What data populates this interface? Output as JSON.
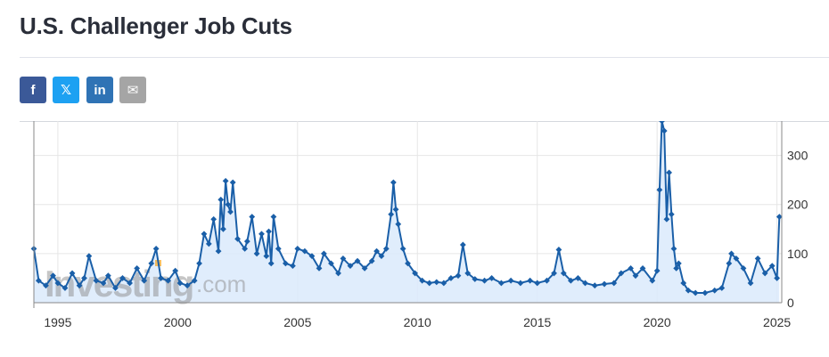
{
  "page": {
    "title": "U.S. Challenger Job Cuts"
  },
  "share": [
    {
      "id": "facebook",
      "icon": "facebook-icon",
      "glyph": "f",
      "color": "#3b5998"
    },
    {
      "id": "twitter",
      "icon": "x-twitter-icon",
      "glyph": "𝕏",
      "color": "#1da1f2"
    },
    {
      "id": "linkedin",
      "icon": "linkedin-icon",
      "glyph": "in",
      "color": "#2f73b5"
    },
    {
      "id": "email",
      "icon": "envelope-icon",
      "glyph": "✉",
      "color": "#a5a5a5"
    }
  ],
  "watermark": {
    "brand": "Investing",
    "suffix": ".com"
  },
  "colors": {
    "line": "#1a5fa8",
    "area": "#dbeafb",
    "grid": "#e6e6e6",
    "axis": "#333333",
    "tick_label": "#333333"
  },
  "chart_data": {
    "type": "area",
    "title": "",
    "xlabel": "",
    "ylabel": "",
    "x_range": [
      1994.0,
      2025.2
    ],
    "ylim": [
      0,
      370
    ],
    "x_ticks": [
      1995,
      2000,
      2005,
      2010,
      2015,
      2020,
      2025
    ],
    "y_ticks": [
      0,
      100,
      200,
      300
    ],
    "y_axis_side": "right",
    "grid": true,
    "marker": "diamond",
    "unit": "K",
    "series": [
      {
        "points": [
          [
            1994.0,
            110
          ],
          [
            1994.2,
            45
          ],
          [
            1994.5,
            35
          ],
          [
            1994.8,
            55
          ],
          [
            1995.0,
            40
          ],
          [
            1995.3,
            30
          ],
          [
            1995.6,
            60
          ],
          [
            1995.9,
            35
          ],
          [
            1996.1,
            50
          ],
          [
            1996.3,
            95
          ],
          [
            1996.6,
            45
          ],
          [
            1996.9,
            40
          ],
          [
            1997.1,
            55
          ],
          [
            1997.4,
            30
          ],
          [
            1997.7,
            50
          ],
          [
            1998.0,
            40
          ],
          [
            1998.3,
            70
          ],
          [
            1998.6,
            45
          ],
          [
            1998.9,
            80
          ],
          [
            1999.1,
            110
          ],
          [
            1999.3,
            50
          ],
          [
            1999.6,
            45
          ],
          [
            1999.9,
            65
          ],
          [
            2000.1,
            40
          ],
          [
            2000.4,
            35
          ],
          [
            2000.7,
            45
          ],
          [
            2000.9,
            80
          ],
          [
            2001.1,
            140
          ],
          [
            2001.3,
            120
          ],
          [
            2001.5,
            170
          ],
          [
            2001.7,
            105
          ],
          [
            2001.8,
            210
          ],
          [
            2001.9,
            150
          ],
          [
            2002.0,
            248
          ],
          [
            2002.1,
            200
          ],
          [
            2002.2,
            185
          ],
          [
            2002.3,
            245
          ],
          [
            2002.5,
            130
          ],
          [
            2002.8,
            110
          ],
          [
            2002.9,
            125
          ],
          [
            2003.1,
            175
          ],
          [
            2003.3,
            100
          ],
          [
            2003.5,
            140
          ],
          [
            2003.7,
            95
          ],
          [
            2003.8,
            145
          ],
          [
            2003.9,
            80
          ],
          [
            2004.0,
            175
          ],
          [
            2004.2,
            110
          ],
          [
            2004.5,
            80
          ],
          [
            2004.8,
            75
          ],
          [
            2005.0,
            110
          ],
          [
            2005.3,
            105
          ],
          [
            2005.6,
            95
          ],
          [
            2005.9,
            70
          ],
          [
            2006.1,
            100
          ],
          [
            2006.4,
            80
          ],
          [
            2006.7,
            60
          ],
          [
            2006.9,
            90
          ],
          [
            2007.2,
            75
          ],
          [
            2007.5,
            85
          ],
          [
            2007.8,
            70
          ],
          [
            2008.1,
            85
          ],
          [
            2008.3,
            105
          ],
          [
            2008.5,
            95
          ],
          [
            2008.7,
            110
          ],
          [
            2008.9,
            180
          ],
          [
            2009.0,
            245
          ],
          [
            2009.1,
            190
          ],
          [
            2009.2,
            160
          ],
          [
            2009.4,
            110
          ],
          [
            2009.6,
            80
          ],
          [
            2009.9,
            60
          ],
          [
            2010.2,
            45
          ],
          [
            2010.5,
            40
          ],
          [
            2010.8,
            42
          ],
          [
            2011.1,
            40
          ],
          [
            2011.4,
            50
          ],
          [
            2011.7,
            55
          ],
          [
            2011.9,
            118
          ],
          [
            2012.1,
            60
          ],
          [
            2012.4,
            48
          ],
          [
            2012.8,
            45
          ],
          [
            2013.1,
            50
          ],
          [
            2013.5,
            40
          ],
          [
            2013.9,
            45
          ],
          [
            2014.3,
            40
          ],
          [
            2014.7,
            45
          ],
          [
            2015.0,
            40
          ],
          [
            2015.4,
            45
          ],
          [
            2015.7,
            60
          ],
          [
            2015.9,
            108
          ],
          [
            2016.1,
            60
          ],
          [
            2016.4,
            45
          ],
          [
            2016.7,
            50
          ],
          [
            2017.0,
            40
          ],
          [
            2017.4,
            35
          ],
          [
            2017.8,
            38
          ],
          [
            2018.2,
            40
          ],
          [
            2018.5,
            60
          ],
          [
            2018.9,
            70
          ],
          [
            2019.1,
            55
          ],
          [
            2019.4,
            70
          ],
          [
            2019.8,
            45
          ],
          [
            2020.0,
            65
          ],
          [
            2020.1,
            230
          ],
          [
            2020.2,
            370
          ],
          [
            2020.3,
            350
          ],
          [
            2020.4,
            170
          ],
          [
            2020.5,
            265
          ],
          [
            2020.6,
            180
          ],
          [
            2020.7,
            110
          ],
          [
            2020.8,
            70
          ],
          [
            2020.9,
            80
          ],
          [
            2021.1,
            40
          ],
          [
            2021.3,
            25
          ],
          [
            2021.6,
            20
          ],
          [
            2022.0,
            20
          ],
          [
            2022.4,
            25
          ],
          [
            2022.7,
            30
          ],
          [
            2023.0,
            80
          ],
          [
            2023.1,
            100
          ],
          [
            2023.3,
            90
          ],
          [
            2023.6,
            70
          ],
          [
            2023.9,
            40
          ],
          [
            2024.2,
            90
          ],
          [
            2024.5,
            60
          ],
          [
            2024.8,
            75
          ],
          [
            2025.0,
            50
          ],
          [
            2025.1,
            175
          ]
        ]
      }
    ]
  }
}
